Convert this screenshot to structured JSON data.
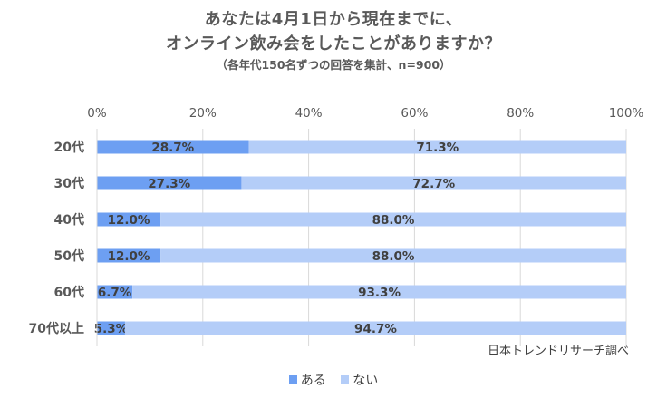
{
  "title": {
    "line1": "あなたは4月1日から現在までに、",
    "line2": "オンライン飲み会をしたことがありますか？",
    "subtitle": "（各年代150名ずつの回答を集計、n=900）"
  },
  "source": "日本トレンドリサーチ調べ",
  "colors": {
    "aru": "#6d9ff2",
    "nai": "#b4cdf8",
    "grid": "#d9d9d9"
  },
  "chart_data": {
    "type": "bar",
    "orientation": "horizontal",
    "stacked": "percent",
    "categories": [
      "20代",
      "30代",
      "40代",
      "50代",
      "60代",
      "70代以上"
    ],
    "series": [
      {
        "name": "ある",
        "values": [
          28.7,
          27.3,
          12.0,
          12.0,
          6.7,
          5.3
        ]
      },
      {
        "name": "ない",
        "values": [
          71.3,
          72.7,
          88.0,
          88.0,
          93.3,
          94.7
        ]
      }
    ],
    "data_labels": [
      [
        "28.7%",
        "27.3%",
        "12.0%",
        "12.0%",
        "6.7%",
        "5.3%"
      ],
      [
        "71.3%",
        "72.7%",
        "88.0%",
        "88.0%",
        "93.3%",
        "94.7%"
      ]
    ],
    "xlim": [
      0,
      100
    ],
    "x_ticks": [
      "0%",
      "20%",
      "40%",
      "60%",
      "80%",
      "100%"
    ],
    "grid": true,
    "legend": "bottom"
  }
}
